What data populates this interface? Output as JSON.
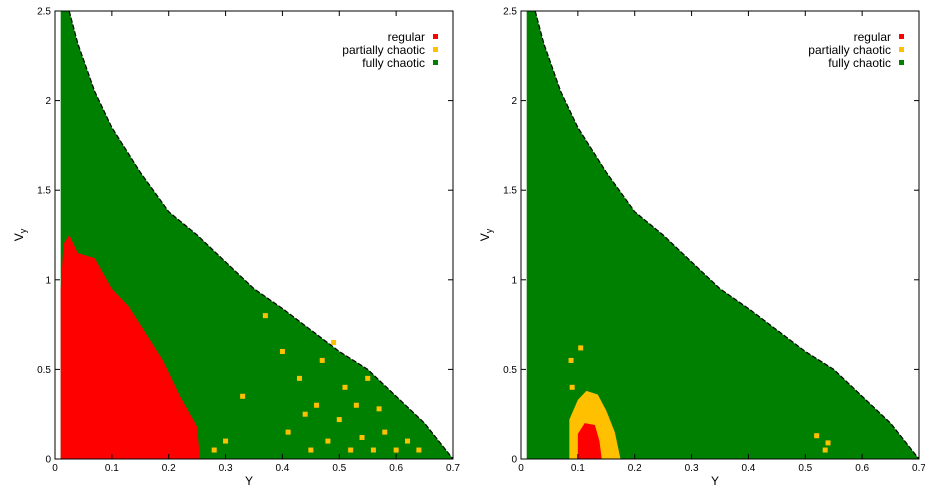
{
  "chart_data": [
    {
      "type": "heatmap",
      "xlabel": "Y",
      "ylabel": "V",
      "ylabel_subscript": "y",
      "xlim": [
        0,
        0.7
      ],
      "ylim": [
        0,
        2.5
      ],
      "xticks": [
        "0",
        "0.1",
        "0.2",
        "0.3",
        "0.4",
        "0.5",
        "0.6",
        "0.7"
      ],
      "yticks": [
        "0",
        "0.5",
        "1",
        "1.5",
        "2",
        "2.5"
      ],
      "legend_position": "top-right",
      "grid": false,
      "colors": {
        "regular": "#ff0000",
        "partially_chaotic": "#ffc000",
        "fully_chaotic": "#008000",
        "boundary": "#000000"
      },
      "legend": [
        {
          "label": "regular",
          "class": "regular"
        },
        {
          "label": "partially chaotic",
          "class": "partially_chaotic"
        },
        {
          "label": "fully chaotic",
          "class": "fully_chaotic"
        }
      ],
      "boundary_curve": [
        [
          0.025,
          2.5
        ],
        [
          0.04,
          2.32
        ],
        [
          0.07,
          2.05
        ],
        [
          0.1,
          1.85
        ],
        [
          0.15,
          1.6
        ],
        [
          0.2,
          1.38
        ],
        [
          0.25,
          1.25
        ],
        [
          0.3,
          1.1
        ],
        [
          0.35,
          0.95
        ],
        [
          0.4,
          0.84
        ],
        [
          0.45,
          0.72
        ],
        [
          0.5,
          0.6
        ],
        [
          0.55,
          0.5
        ],
        [
          0.6,
          0.35
        ],
        [
          0.65,
          0.2
        ],
        [
          0.7,
          0.0
        ]
      ],
      "region_start_x": 0.01,
      "regular_region": [
        [
          0.01,
          0.0
        ],
        [
          0.01,
          0.95
        ],
        [
          0.015,
          1.2
        ],
        [
          0.025,
          1.25
        ],
        [
          0.04,
          1.15
        ],
        [
          0.07,
          1.12
        ],
        [
          0.1,
          0.95
        ],
        [
          0.13,
          0.85
        ],
        [
          0.16,
          0.7
        ],
        [
          0.19,
          0.55
        ],
        [
          0.22,
          0.35
        ],
        [
          0.25,
          0.18
        ],
        [
          0.255,
          0.0
        ]
      ],
      "partially_chaotic_cells": [
        [
          0.28,
          0.05
        ],
        [
          0.3,
          0.1
        ],
        [
          0.33,
          0.35
        ],
        [
          0.37,
          0.8
        ],
        [
          0.4,
          0.6
        ],
        [
          0.41,
          0.15
        ],
        [
          0.43,
          0.45
        ],
        [
          0.44,
          0.25
        ],
        [
          0.45,
          0.05
        ],
        [
          0.46,
          0.3
        ],
        [
          0.47,
          0.55
        ],
        [
          0.48,
          0.1
        ],
        [
          0.49,
          0.65
        ],
        [
          0.5,
          0.22
        ],
        [
          0.51,
          0.4
        ],
        [
          0.52,
          0.05
        ],
        [
          0.53,
          0.3
        ],
        [
          0.54,
          0.12
        ],
        [
          0.55,
          0.45
        ],
        [
          0.56,
          0.05
        ],
        [
          0.57,
          0.28
        ],
        [
          0.58,
          0.15
        ],
        [
          0.6,
          0.05
        ],
        [
          0.62,
          0.1
        ],
        [
          0.64,
          0.05
        ]
      ]
    },
    {
      "type": "heatmap",
      "xlabel": "Y",
      "ylabel": "V",
      "ylabel_subscript": "y",
      "xlim": [
        0,
        0.7
      ],
      "ylim": [
        0,
        2.5
      ],
      "xticks": [
        "0",
        "0.1",
        "0.2",
        "0.3",
        "0.4",
        "0.5",
        "0.6",
        "0.7"
      ],
      "yticks": [
        "0",
        "0.5",
        "1",
        "1.5",
        "2",
        "2.5"
      ],
      "legend_position": "top-right",
      "grid": false,
      "colors": {
        "regular": "#ff0000",
        "partially_chaotic": "#ffc000",
        "fully_chaotic": "#008000",
        "boundary": "#000000"
      },
      "legend": [
        {
          "label": "regular",
          "class": "regular"
        },
        {
          "label": "partially chaotic",
          "class": "partially_chaotic"
        },
        {
          "label": "fully chaotic",
          "class": "fully_chaotic"
        }
      ],
      "boundary_curve": [
        [
          0.025,
          2.5
        ],
        [
          0.04,
          2.32
        ],
        [
          0.07,
          2.05
        ],
        [
          0.1,
          1.85
        ],
        [
          0.15,
          1.6
        ],
        [
          0.2,
          1.38
        ],
        [
          0.25,
          1.25
        ],
        [
          0.3,
          1.1
        ],
        [
          0.35,
          0.95
        ],
        [
          0.4,
          0.84
        ],
        [
          0.45,
          0.72
        ],
        [
          0.5,
          0.6
        ],
        [
          0.55,
          0.5
        ],
        [
          0.6,
          0.35
        ],
        [
          0.65,
          0.2
        ],
        [
          0.7,
          0.0
        ]
      ],
      "region_start_x": 0.01,
      "partially_chaotic_region": [
        [
          0.085,
          0.0
        ],
        [
          0.085,
          0.22
        ],
        [
          0.1,
          0.33
        ],
        [
          0.115,
          0.38
        ],
        [
          0.135,
          0.36
        ],
        [
          0.15,
          0.27
        ],
        [
          0.165,
          0.15
        ],
        [
          0.175,
          0.0
        ]
      ],
      "regular_region": [
        [
          0.1,
          0.0
        ],
        [
          0.1,
          0.14
        ],
        [
          0.112,
          0.2
        ],
        [
          0.13,
          0.19
        ],
        [
          0.138,
          0.1
        ],
        [
          0.142,
          0.0
        ]
      ],
      "partially_chaotic_cells": [
        [
          0.088,
          0.55
        ],
        [
          0.09,
          0.4
        ],
        [
          0.105,
          0.62
        ],
        [
          0.52,
          0.13
        ],
        [
          0.535,
          0.05
        ],
        [
          0.54,
          0.09
        ]
      ]
    }
  ]
}
